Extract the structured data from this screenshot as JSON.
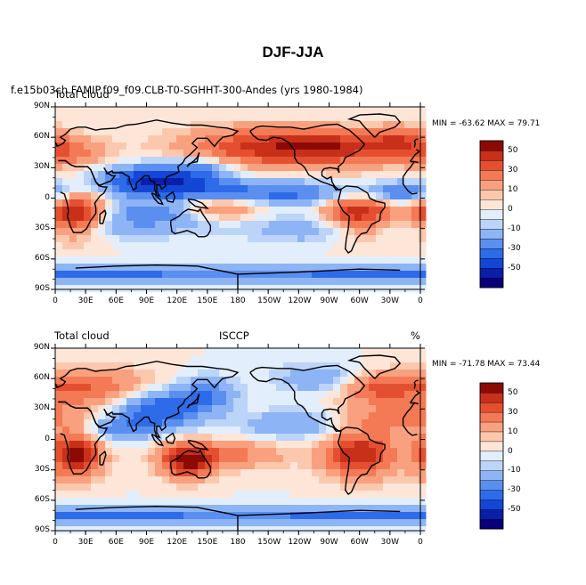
{
  "title": "DJF-JJA",
  "panels": [
    {
      "left_title": "Total cloud",
      "subtitle": "f.e15b03ch.FAMIP.f09_f09.CLB-T0-SGHHT-300-Andes (yrs 1980-1984)",
      "stats": "MIN = -63.62  MAX =  79.71",
      "min": -63.62,
      "max": 79.71
    },
    {
      "left_title": "Total cloud",
      "center_title": "ISCCP",
      "units": "%",
      "stats": "MIN = -71.78  MAX =  73.44",
      "min": -71.78,
      "max": 73.44
    }
  ],
  "chart_data": [
    {
      "type": "heatmap",
      "title": "Total cloud",
      "subtitle": "f.e15b03ch.FAMIP.f09_f09.CLB-T0-SGHHT-300-Andes (yrs 1980-1984)",
      "x_ticks": [
        "0",
        "30E",
        "60E",
        "90E",
        "120E",
        "150E",
        "180",
        "150W",
        "120W",
        "90W",
        "60W",
        "30W",
        "0"
      ],
      "y_ticks": [
        "90N",
        "60N",
        "30N",
        "0",
        "30S",
        "60S",
        "90S"
      ],
      "xlim": [
        0,
        360
      ],
      "ylim": [
        -90,
        90
      ],
      "min": -63.62,
      "max": 79.71,
      "colorbar_levels": [
        -60,
        -50,
        -40,
        -30,
        -20,
        -10,
        -5,
        0,
        5,
        10,
        20,
        30,
        40,
        50,
        60
      ],
      "colorbar_labels": [
        "50",
        "30",
        "10",
        "0",
        "-10",
        "-30",
        "-50"
      ],
      "colors": [
        "#08007a",
        "#0a1fa8",
        "#1446d6",
        "#2e6be8",
        "#5a8ff0",
        "#8db4f4",
        "#bcd4f8",
        "#e2eefb",
        "#fde6d8",
        "#fcc8ad",
        "#f9a07f",
        "#f37a55",
        "#e4502f",
        "#c8301a",
        "#8c0a05"
      ],
      "grid": false
    },
    {
      "type": "heatmap",
      "title": "Total cloud",
      "subtitle": "ISCCP",
      "units": "%",
      "x_ticks": [
        "0",
        "30E",
        "60E",
        "90E",
        "120E",
        "150E",
        "180",
        "150W",
        "120W",
        "90W",
        "60W",
        "30W",
        "0"
      ],
      "y_ticks": [
        "90N",
        "60N",
        "30N",
        "0",
        "30S",
        "60S",
        "90S"
      ],
      "xlim": [
        0,
        360
      ],
      "ylim": [
        -90,
        90
      ],
      "min": -71.78,
      "max": 73.44,
      "colorbar_levels": [
        -60,
        -50,
        -40,
        -30,
        -20,
        -10,
        -5,
        0,
        5,
        10,
        20,
        30,
        40,
        50,
        60
      ],
      "colorbar_labels": [
        "50",
        "30",
        "10",
        "0",
        "-10",
        "-30",
        "-50"
      ],
      "colors": [
        "#08007a",
        "#0a1fa8",
        "#1446d6",
        "#2e6be8",
        "#5a8ff0",
        "#8db4f4",
        "#bcd4f8",
        "#e2eefb",
        "#fde6d8",
        "#fcc8ad",
        "#f9a07f",
        "#f37a55",
        "#e4502f",
        "#c8301a",
        "#8c0a05"
      ],
      "grid": false
    }
  ]
}
